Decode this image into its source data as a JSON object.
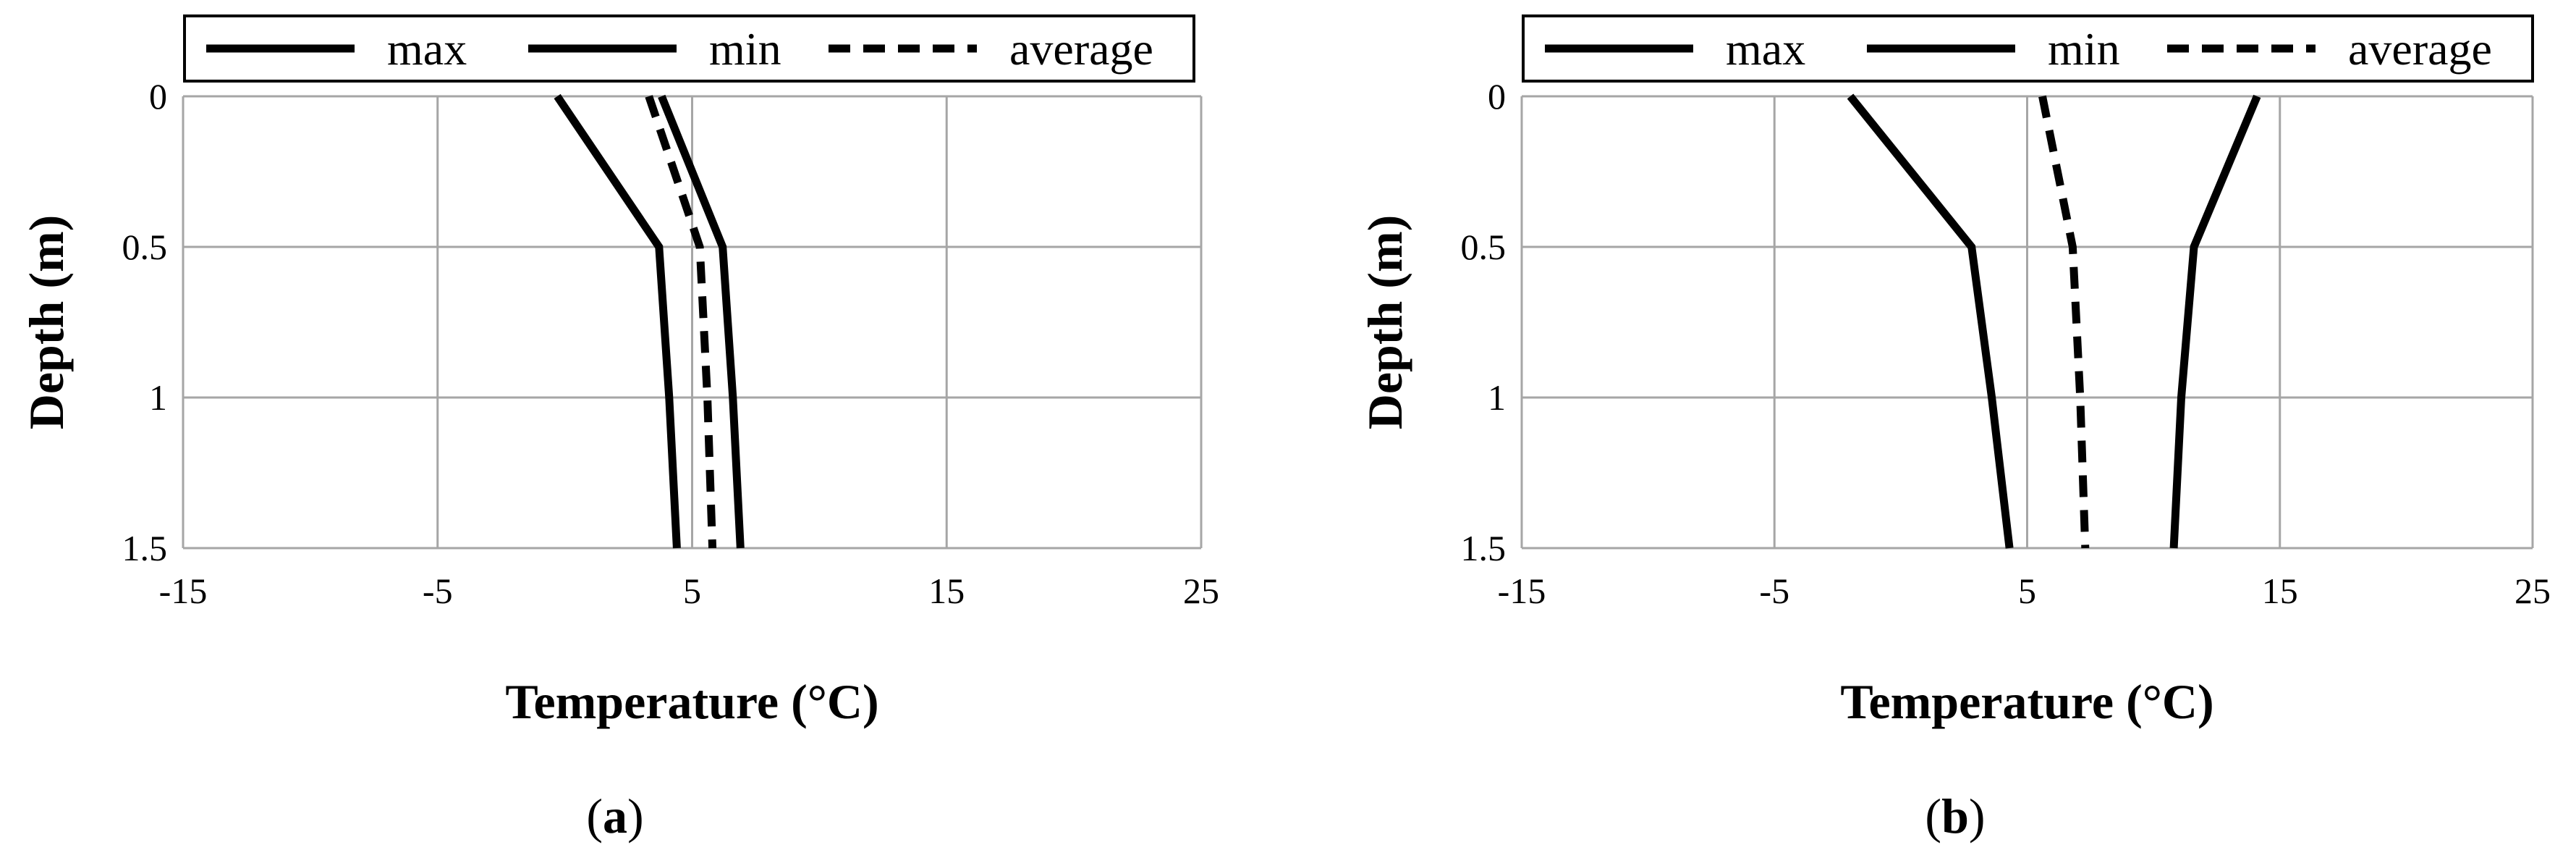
{
  "chart_data": [
    {
      "type": "line",
      "panel_label": "a",
      "xlabel": "Temperature (°C)",
      "ylabel": "Depth (m)",
      "xlim": [
        -15,
        25
      ],
      "ylim": [
        0,
        1.5
      ],
      "y_inverted": true,
      "xticks": [
        "-15",
        "-5",
        "5",
        "15",
        "25"
      ],
      "yticks": [
        "0",
        "0.5",
        "1",
        "1.5"
      ],
      "grid": true,
      "legend_position": "top",
      "series": [
        {
          "name": "max",
          "style": "solid",
          "x": [
            3.8,
            6.2,
            6.6,
            6.9
          ],
          "y": [
            0,
            0.5,
            1,
            1.5
          ]
        },
        {
          "name": "min",
          "style": "solid",
          "x": [
            -0.3,
            3.7,
            4.1,
            4.4
          ],
          "y": [
            0,
            0.5,
            1,
            1.5
          ]
        },
        {
          "name": "average",
          "style": "dashed",
          "x": [
            3.3,
            5.3,
            5.6,
            5.8
          ],
          "y": [
            0,
            0.5,
            1,
            1.5
          ]
        }
      ]
    },
    {
      "type": "line",
      "panel_label": "b",
      "xlabel": "Temperature (°C)",
      "ylabel": "Depth (m)",
      "xlim": [
        -15,
        25
      ],
      "ylim": [
        0,
        1.5
      ],
      "y_inverted": true,
      "xticks": [
        "-15",
        "-5",
        "5",
        "15",
        "25"
      ],
      "yticks": [
        "0",
        "0.5",
        "1",
        "1.5"
      ],
      "grid": true,
      "legend_position": "top",
      "series": [
        {
          "name": "max",
          "style": "solid",
          "x": [
            14.1,
            11.6,
            11.1,
            10.8
          ],
          "y": [
            0,
            0.5,
            1,
            1.5
          ]
        },
        {
          "name": "min",
          "style": "solid",
          "x": [
            -2.0,
            2.8,
            3.6,
            4.3
          ],
          "y": [
            0,
            0.5,
            1,
            1.5
          ]
        },
        {
          "name": "average",
          "style": "dashed",
          "x": [
            5.6,
            6.8,
            7.1,
            7.3
          ],
          "y": [
            0,
            0.5,
            1,
            1.5
          ]
        }
      ]
    }
  ]
}
